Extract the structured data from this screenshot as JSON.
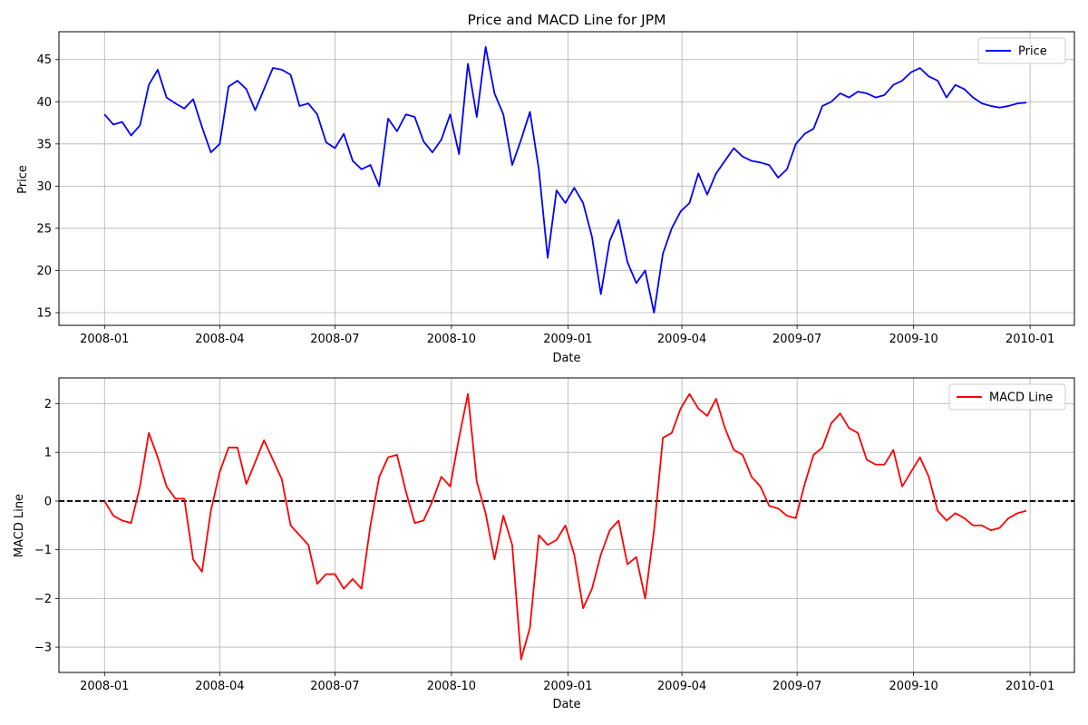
{
  "chart_data": [
    {
      "type": "line",
      "title": "Price and MACD Line for JPM",
      "xlabel": "Date",
      "ylabel": "Price",
      "ylim": [
        13.5,
        48.3
      ],
      "xlim": [
        "2007-11-26",
        "2010-02-05"
      ],
      "yticks": [
        15,
        20,
        25,
        30,
        35,
        40,
        45
      ],
      "xticks": [
        "2008-01",
        "2008-04",
        "2008-07",
        "2008-10",
        "2009-01",
        "2009-04",
        "2009-07",
        "2009-10",
        "2010-01"
      ],
      "grid": true,
      "legend": "upper right",
      "series": [
        {
          "name": "Price",
          "color": "#0000ff",
          "x": [
            "2008-01-01",
            "2008-01-08",
            "2008-01-15",
            "2008-01-22",
            "2008-01-29",
            "2008-02-05",
            "2008-02-12",
            "2008-02-19",
            "2008-02-26",
            "2008-03-04",
            "2008-03-11",
            "2008-03-18",
            "2008-03-25",
            "2008-04-01",
            "2008-04-08",
            "2008-04-15",
            "2008-04-22",
            "2008-04-29",
            "2008-05-06",
            "2008-05-13",
            "2008-05-20",
            "2008-05-27",
            "2008-06-03",
            "2008-06-10",
            "2008-06-17",
            "2008-06-24",
            "2008-07-01",
            "2008-07-08",
            "2008-07-15",
            "2008-07-22",
            "2008-07-29",
            "2008-08-05",
            "2008-08-12",
            "2008-08-19",
            "2008-08-26",
            "2008-09-02",
            "2008-09-09",
            "2008-09-16",
            "2008-09-23",
            "2008-09-30",
            "2008-10-07",
            "2008-10-14",
            "2008-10-21",
            "2008-10-28",
            "2008-11-04",
            "2008-11-11",
            "2008-11-18",
            "2008-11-25",
            "2008-12-02",
            "2008-12-09",
            "2008-12-16",
            "2008-12-23",
            "2008-12-30",
            "2009-01-06",
            "2009-01-13",
            "2009-01-20",
            "2009-01-27",
            "2009-02-03",
            "2009-02-10",
            "2009-02-17",
            "2009-02-24",
            "2009-03-03",
            "2009-03-10",
            "2009-03-17",
            "2009-03-24",
            "2009-03-31",
            "2009-04-07",
            "2009-04-14",
            "2009-04-21",
            "2009-04-28",
            "2009-05-05",
            "2009-05-12",
            "2009-05-19",
            "2009-05-26",
            "2009-06-02",
            "2009-06-09",
            "2009-06-16",
            "2009-06-23",
            "2009-06-30",
            "2009-07-07",
            "2009-07-14",
            "2009-07-21",
            "2009-07-28",
            "2009-08-04",
            "2009-08-11",
            "2009-08-18",
            "2009-08-25",
            "2009-09-01",
            "2009-09-08",
            "2009-09-15",
            "2009-09-22",
            "2009-09-29",
            "2009-10-06",
            "2009-10-13",
            "2009-10-20",
            "2009-10-27",
            "2009-11-03",
            "2009-11-10",
            "2009-11-17",
            "2009-11-24",
            "2009-12-01",
            "2009-12-08",
            "2009-12-15",
            "2009-12-22",
            "2009-12-29"
          ],
          "values": [
            38.5,
            37.3,
            37.6,
            36.0,
            37.2,
            42.0,
            43.8,
            40.5,
            39.8,
            39.2,
            40.3,
            37.0,
            34.0,
            35.0,
            41.8,
            42.5,
            41.5,
            39.0,
            41.5,
            44.0,
            43.8,
            43.2,
            39.5,
            39.8,
            38.5,
            35.2,
            34.5,
            36.2,
            33.0,
            32.0,
            32.5,
            30.0,
            38.0,
            36.5,
            38.5,
            38.2,
            35.3,
            34.0,
            35.5,
            38.5,
            33.8,
            44.5,
            38.2,
            46.5,
            41.0,
            38.5,
            32.5,
            35.5,
            38.8,
            32.0,
            21.5,
            29.5,
            28.0,
            29.8,
            28.0,
            24.0,
            17.2,
            23.5,
            26.0,
            21.0,
            18.5,
            20.0,
            15.0,
            22.0,
            25.0,
            27.0,
            28.0,
            31.5,
            29.0,
            31.5,
            33.0,
            34.5,
            33.5,
            33.0,
            32.8,
            32.5,
            31.0,
            32.0,
            35.0,
            36.2,
            36.8,
            39.5,
            40.0,
            41.0,
            40.5,
            41.2,
            41.0,
            40.5,
            40.8,
            42.0,
            42.5,
            43.5,
            44.0,
            43.0,
            42.5,
            40.5,
            42.0,
            41.5,
            40.5,
            39.8,
            39.5,
            39.3,
            39.5,
            39.8,
            39.9
          ]
        }
      ]
    },
    {
      "type": "line",
      "title": "",
      "xlabel": "Date",
      "ylabel": "MACD Line",
      "ylim": [
        -3.52,
        2.53
      ],
      "xlim": [
        "2007-11-26",
        "2010-02-05"
      ],
      "yticks": [
        -3,
        -2,
        -1,
        0,
        1,
        2
      ],
      "ytick_labels": [
        "−3",
        "−2",
        "−1",
        "0",
        "1",
        "2"
      ],
      "xticks": [
        "2008-01",
        "2008-04",
        "2008-07",
        "2008-10",
        "2009-01",
        "2009-04",
        "2009-07",
        "2009-10",
        "2010-01"
      ],
      "grid": true,
      "legend": "upper right",
      "hline": 0,
      "series": [
        {
          "name": "MACD Line",
          "color": "#ff0000",
          "x": [
            "2008-01-01",
            "2008-01-08",
            "2008-01-15",
            "2008-01-22",
            "2008-01-29",
            "2008-02-05",
            "2008-02-12",
            "2008-02-19",
            "2008-02-26",
            "2008-03-04",
            "2008-03-11",
            "2008-03-18",
            "2008-03-25",
            "2008-04-01",
            "2008-04-08",
            "2008-04-15",
            "2008-04-22",
            "2008-04-29",
            "2008-05-06",
            "2008-05-13",
            "2008-05-20",
            "2008-05-27",
            "2008-06-03",
            "2008-06-10",
            "2008-06-17",
            "2008-06-24",
            "2008-07-01",
            "2008-07-08",
            "2008-07-15",
            "2008-07-22",
            "2008-07-29",
            "2008-08-05",
            "2008-08-12",
            "2008-08-19",
            "2008-08-26",
            "2008-09-02",
            "2008-09-09",
            "2008-09-16",
            "2008-09-23",
            "2008-09-30",
            "2008-10-07",
            "2008-10-14",
            "2008-10-21",
            "2008-10-28",
            "2008-11-04",
            "2008-11-11",
            "2008-11-18",
            "2008-11-25",
            "2008-12-02",
            "2008-12-09",
            "2008-12-16",
            "2008-12-23",
            "2008-12-30",
            "2009-01-06",
            "2009-01-13",
            "2009-01-20",
            "2009-01-27",
            "2009-02-03",
            "2009-02-10",
            "2009-02-17",
            "2009-02-24",
            "2009-03-03",
            "2009-03-10",
            "2009-03-17",
            "2009-03-24",
            "2009-03-31",
            "2009-04-07",
            "2009-04-14",
            "2009-04-21",
            "2009-04-28",
            "2009-05-05",
            "2009-05-12",
            "2009-05-19",
            "2009-05-26",
            "2009-06-02",
            "2009-06-09",
            "2009-06-16",
            "2009-06-23",
            "2009-06-30",
            "2009-07-07",
            "2009-07-14",
            "2009-07-21",
            "2009-07-28",
            "2009-08-04",
            "2009-08-11",
            "2009-08-18",
            "2009-08-25",
            "2009-09-01",
            "2009-09-08",
            "2009-09-15",
            "2009-09-22",
            "2009-09-29",
            "2009-10-06",
            "2009-10-13",
            "2009-10-20",
            "2009-10-27",
            "2009-11-03",
            "2009-11-10",
            "2009-11-17",
            "2009-11-24",
            "2009-12-01",
            "2009-12-08",
            "2009-12-15",
            "2009-12-22",
            "2009-12-29"
          ],
          "values": [
            0.0,
            -0.3,
            -0.4,
            -0.45,
            0.3,
            1.4,
            0.9,
            0.3,
            0.05,
            0.05,
            -1.2,
            -1.45,
            -0.2,
            0.6,
            1.1,
            1.1,
            0.35,
            0.8,
            1.25,
            0.85,
            0.45,
            -0.5,
            -0.7,
            -0.9,
            -1.7,
            -1.5,
            -1.5,
            -1.8,
            -1.6,
            -1.8,
            -0.5,
            0.5,
            0.9,
            0.95,
            0.2,
            -0.45,
            -0.4,
            0.0,
            0.5,
            0.3,
            1.3,
            2.2,
            0.4,
            -0.25,
            -1.2,
            -0.3,
            -0.9,
            -3.25,
            -2.6,
            -0.7,
            -0.9,
            -0.8,
            -0.5,
            -1.1,
            -2.2,
            -1.8,
            -1.1,
            -0.6,
            -0.4,
            -1.3,
            -1.15,
            -2.0,
            -0.6,
            1.3,
            1.4,
            1.9,
            2.2,
            1.9,
            1.75,
            2.1,
            1.5,
            1.05,
            0.95,
            0.5,
            0.3,
            -0.1,
            -0.15,
            -0.3,
            -0.35,
            0.35,
            0.95,
            1.1,
            1.6,
            1.8,
            1.5,
            1.4,
            0.85,
            0.75,
            0.75,
            1.05,
            0.3,
            0.6,
            0.9,
            0.5,
            -0.2,
            -0.4,
            -0.25,
            -0.35,
            -0.5,
            -0.5,
            -0.6,
            -0.55,
            -0.35,
            -0.25,
            -0.2
          ]
        }
      ]
    }
  ]
}
